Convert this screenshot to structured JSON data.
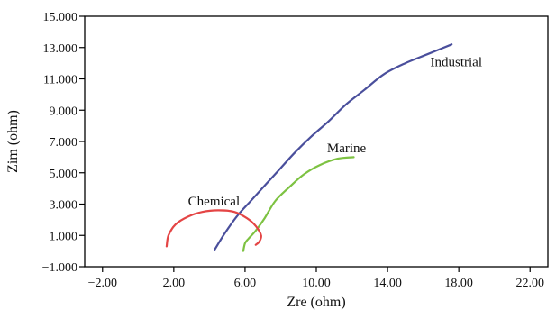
{
  "chart_data": {
    "type": "line",
    "xlabel": "Zre (ohm)",
    "ylabel": "Zim (ohm)",
    "xlim": [
      -3,
      23
    ],
    "ylim": [
      -1,
      15
    ],
    "grid": false,
    "legend": "none",
    "x_ticks": [
      -2,
      2,
      6,
      10,
      14,
      18,
      22
    ],
    "x_tick_labels": [
      "−2.00",
      "2.00",
      "6.00",
      "10.00",
      "14.00",
      "18.00",
      "22.00"
    ],
    "y_ticks": [
      -1,
      1,
      3,
      5,
      7,
      9,
      11,
      13,
      15
    ],
    "y_tick_labels": [
      "−1.000",
      "1.000",
      "3.000",
      "5.000",
      "7.000",
      "9.000",
      "11.000",
      "13.000",
      "15.000"
    ],
    "series": [
      {
        "name": "Industrial",
        "color": "#4a4f9c",
        "x": [
          4.3,
          4.9,
          5.6,
          6.4,
          7.2,
          8.0,
          8.8,
          9.7,
          10.7,
          11.7,
          12.7,
          13.8,
          15.0,
          16.3,
          17.6
        ],
        "y": [
          0.1,
          1.2,
          2.3,
          3.3,
          4.3,
          5.3,
          6.3,
          7.3,
          8.3,
          9.4,
          10.3,
          11.3,
          12.0,
          12.6,
          13.2
        ]
      },
      {
        "name": "Marine",
        "color": "#7dc242",
        "x": [
          5.9,
          6.0,
          6.2,
          6.6,
          7.1,
          7.7,
          8.5,
          9.3,
          10.2,
          11.2,
          12.1
        ],
        "y": [
          0.0,
          0.5,
          0.8,
          1.3,
          2.1,
          3.2,
          4.1,
          4.9,
          5.5,
          5.9,
          6.0
        ]
      },
      {
        "name": "Chemical",
        "color": "#e44545",
        "x": [
          1.6,
          1.7,
          2.1,
          2.8,
          3.6,
          4.5,
          5.4,
          6.1,
          6.6,
          6.9,
          6.8,
          6.6
        ],
        "y": [
          0.3,
          1.0,
          1.7,
          2.2,
          2.5,
          2.6,
          2.5,
          2.1,
          1.6,
          1.0,
          0.6,
          0.4
        ]
      }
    ],
    "annotations": [
      {
        "text": "Industrial",
        "x": 16.4,
        "y": 11.8
      },
      {
        "text": "Marine",
        "x": 10.6,
        "y": 6.3
      },
      {
        "text": "Chemical",
        "x": 2.8,
        "y": 2.9
      }
    ]
  }
}
